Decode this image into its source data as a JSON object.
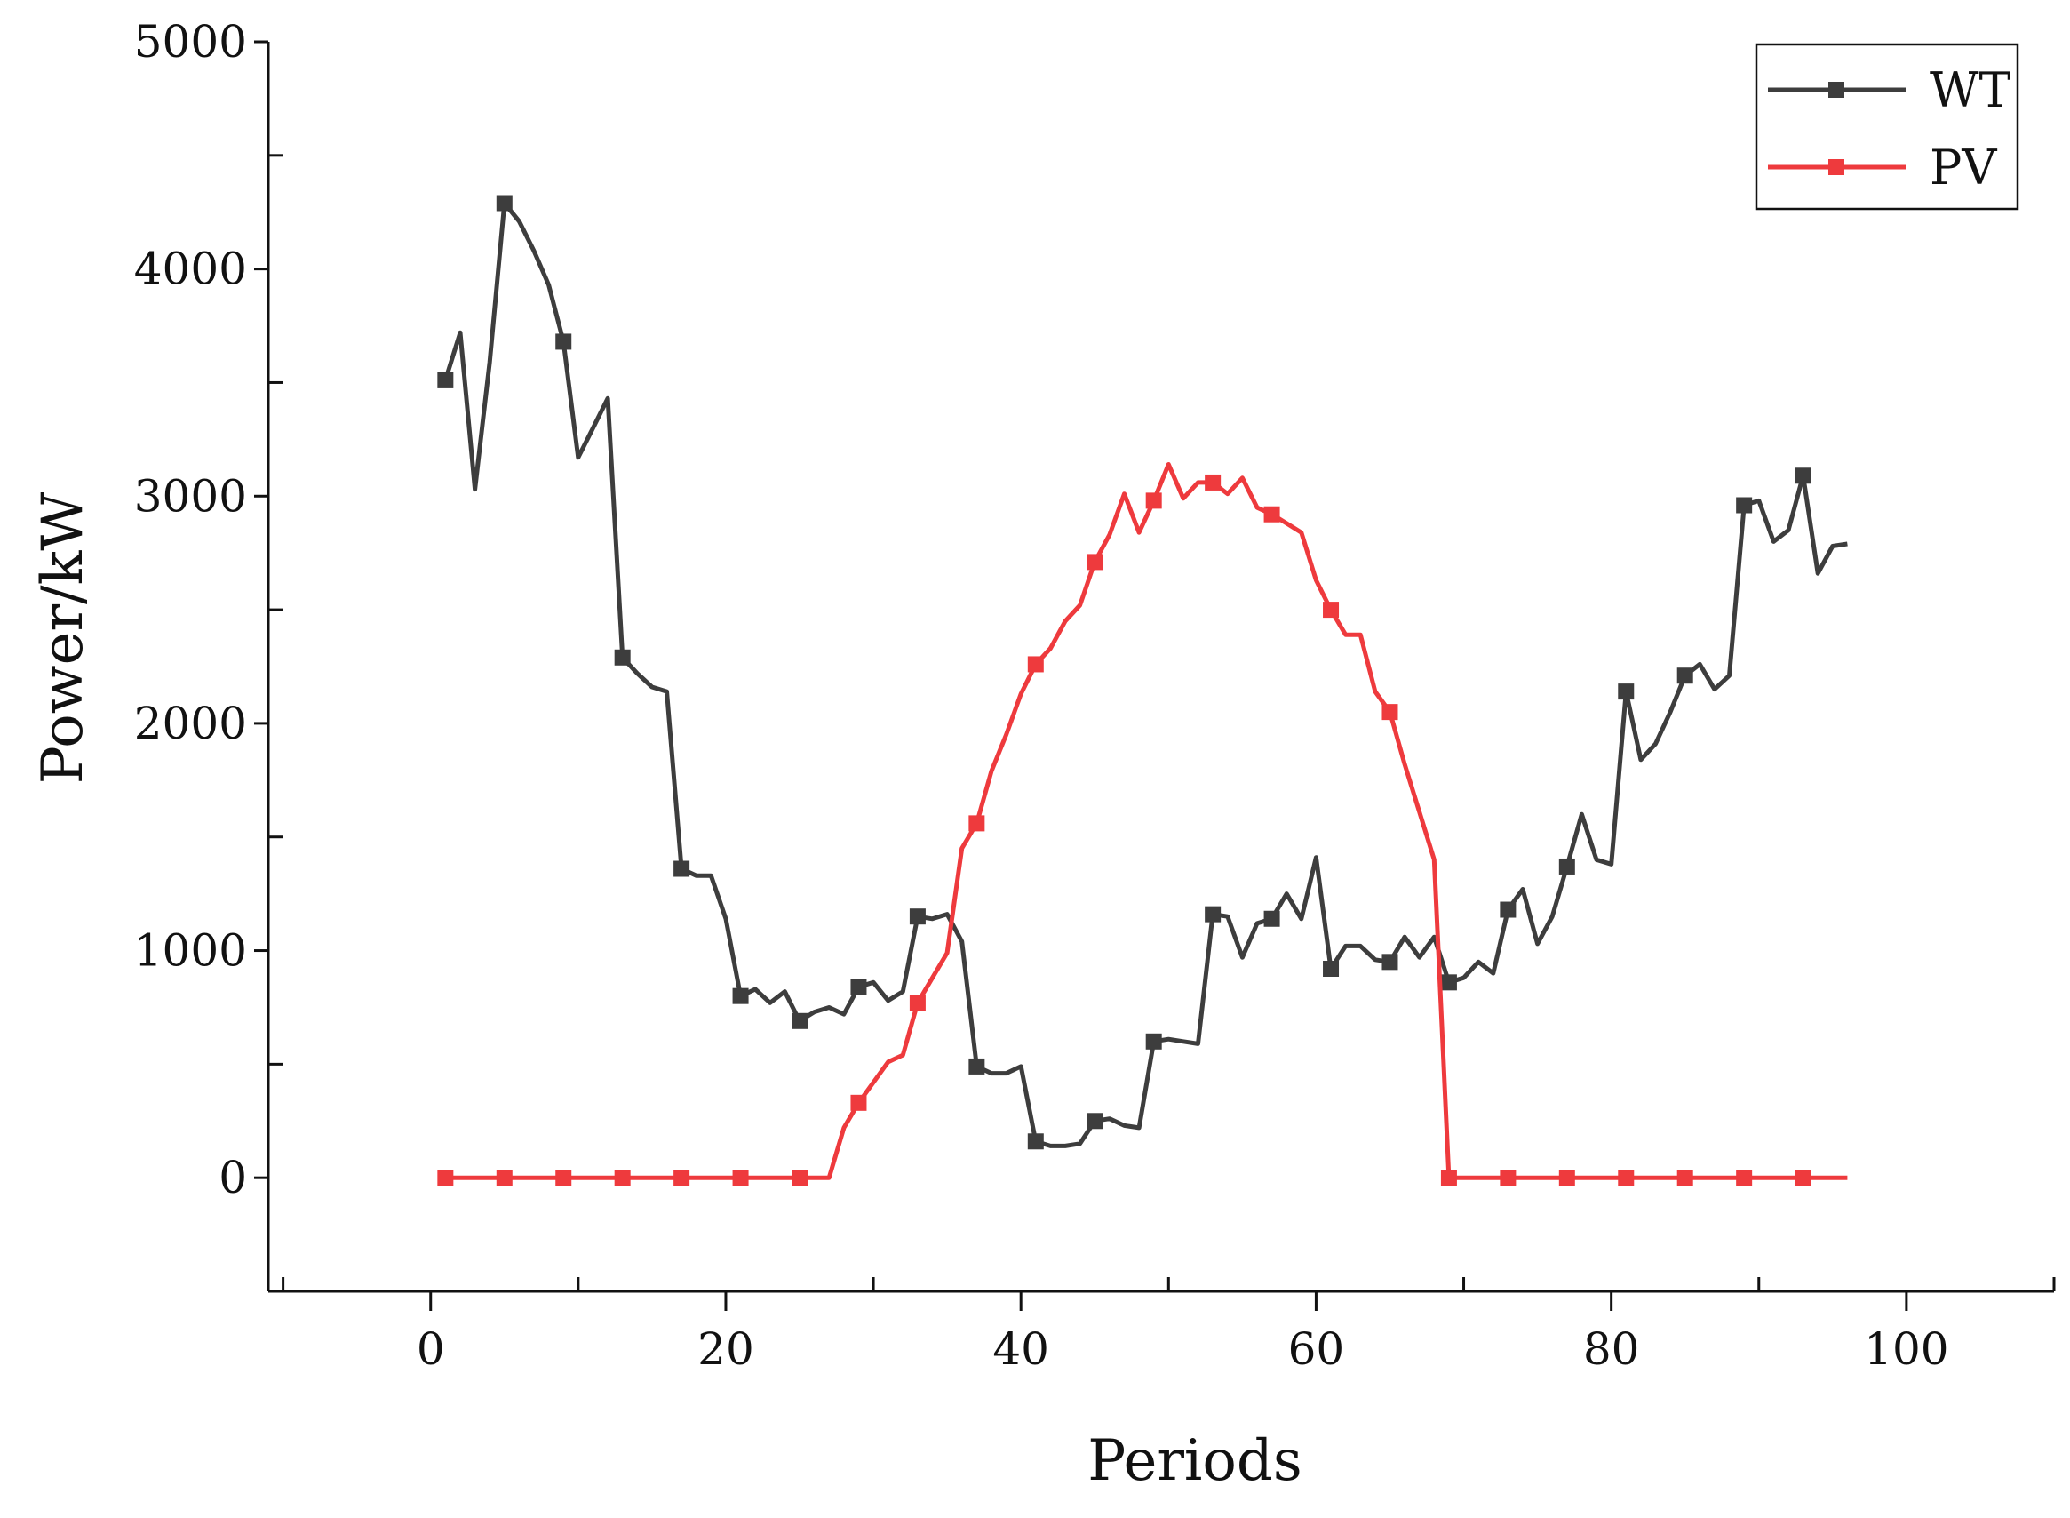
{
  "chart_data": {
    "type": "line",
    "xlabel": "Periods",
    "ylabel": "Power/kW",
    "xlim": [
      -11,
      110
    ],
    "ylim": [
      -500,
      5000
    ],
    "x_ticks": [
      0,
      20,
      40,
      60,
      80,
      100
    ],
    "y_ticks": [
      0,
      1000,
      2000,
      3000,
      4000,
      5000
    ],
    "x_tick_labels": [
      "0",
      "20",
      "40",
      "60",
      "80",
      "100"
    ],
    "y_tick_labels": [
      "0",
      "1000",
      "2000",
      "3000",
      "4000",
      "5000"
    ],
    "grid": false,
    "legend": {
      "position": "top-right",
      "entries": [
        "WT",
        "PV"
      ]
    },
    "marker_every": 4,
    "x": [
      1,
      2,
      3,
      4,
      5,
      6,
      7,
      8,
      9,
      10,
      11,
      12,
      13,
      14,
      15,
      16,
      17,
      18,
      19,
      20,
      21,
      22,
      23,
      24,
      25,
      26,
      27,
      28,
      29,
      30,
      31,
      32,
      33,
      34,
      35,
      36,
      37,
      38,
      39,
      40,
      41,
      42,
      43,
      44,
      45,
      46,
      47,
      48,
      49,
      50,
      51,
      52,
      53,
      54,
      55,
      56,
      57,
      58,
      59,
      60,
      61,
      62,
      63,
      64,
      65,
      66,
      67,
      68,
      69,
      70,
      71,
      72,
      73,
      74,
      75,
      76,
      77,
      78,
      79,
      80,
      81,
      82,
      83,
      84,
      85,
      86,
      87,
      88,
      89,
      90,
      91,
      92,
      93,
      94,
      95,
      96
    ],
    "series": [
      {
        "name": "WT",
        "color": "#3d3d3d",
        "values": [
          3510,
          3720,
          3030,
          3590,
          4290,
          4210,
          4080,
          3930,
          3680,
          3170,
          3300,
          3430,
          2290,
          2220,
          2160,
          2140,
          1360,
          1330,
          1330,
          1140,
          800,
          830,
          770,
          820,
          690,
          730,
          750,
          720,
          840,
          860,
          780,
          820,
          1150,
          1140,
          1160,
          1040,
          490,
          460,
          460,
          490,
          160,
          140,
          140,
          150,
          250,
          260,
          230,
          220,
          600,
          610,
          600,
          590,
          1160,
          1150,
          970,
          1120,
          1140,
          1250,
          1140,
          1410,
          920,
          1020,
          1020,
          960,
          950,
          1060,
          970,
          1060,
          860,
          880,
          950,
          900,
          1180,
          1270,
          1030,
          1150,
          1370,
          1600,
          1400,
          1380,
          2140,
          1840,
          1910,
          2050,
          2210,
          2260,
          2150,
          2210,
          2960,
          2980,
          2800,
          2850,
          3090,
          2660,
          2780,
          2790
        ]
      },
      {
        "name": "PV",
        "color": "#ee3a3d",
        "values": [
          0,
          0,
          0,
          0,
          0,
          0,
          0,
          0,
          0,
          0,
          0,
          0,
          0,
          0,
          0,
          0,
          0,
          0,
          0,
          0,
          0,
          0,
          0,
          0,
          0,
          0,
          0,
          220,
          330,
          420,
          510,
          540,
          770,
          880,
          990,
          1450,
          1560,
          1790,
          1950,
          2130,
          2260,
          2330,
          2450,
          2520,
          2710,
          2830,
          3010,
          2840,
          2980,
          3140,
          2990,
          3060,
          3060,
          3010,
          3080,
          2950,
          2920,
          2880,
          2840,
          2630,
          2500,
          2390,
          2390,
          2140,
          2050,
          1820,
          1610,
          1400,
          0,
          0,
          0,
          0,
          0,
          0,
          0,
          0,
          0,
          0,
          0,
          0,
          0,
          0,
          0,
          0,
          0,
          0,
          0,
          0,
          0,
          0,
          0,
          0,
          0,
          0,
          0,
          0
        ]
      }
    ]
  }
}
